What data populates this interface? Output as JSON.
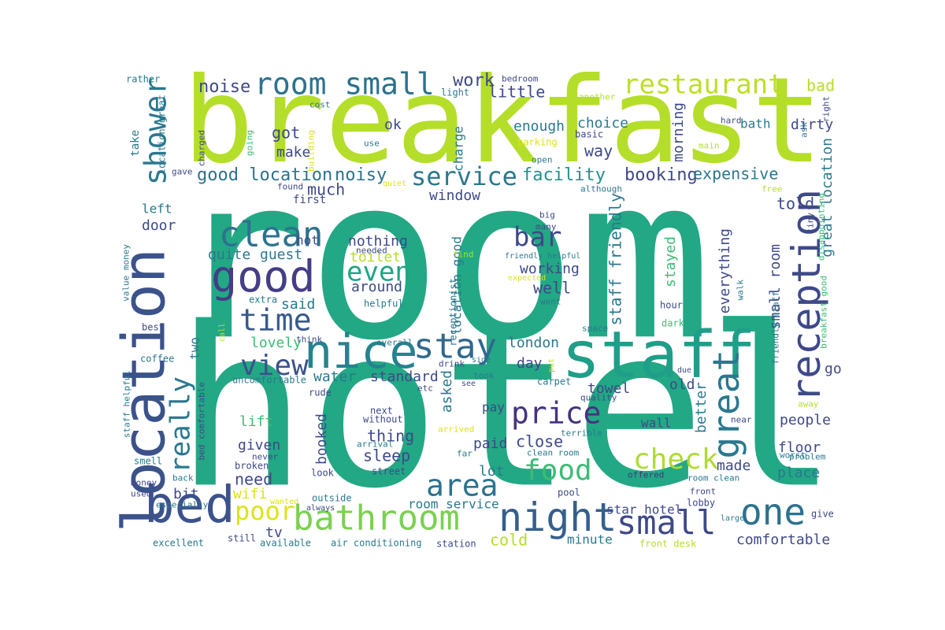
{
  "words": [
    {
      "text": "room",
      "color": "#22a884"
    },
    {
      "text": "hotel",
      "color": "#22a884"
    },
    {
      "text": "breakfast",
      "color": "#b5de2b"
    },
    {
      "text": "location",
      "color": "#3b528b"
    },
    {
      "text": "staff",
      "color": "#1f9e89"
    },
    {
      "text": "nice",
      "color": "#26828e"
    },
    {
      "text": "bed",
      "color": "#3b528b"
    },
    {
      "text": "bathroom",
      "color": "#7ad151"
    },
    {
      "text": "good",
      "color": "#433e85"
    },
    {
      "text": "night",
      "color": "#355f8d"
    },
    {
      "text": "reception",
      "color": "#3e4989"
    },
    {
      "text": "room small",
      "color": "#2c728e"
    },
    {
      "text": "restaurant",
      "color": "#bddf26"
    },
    {
      "text": "clean",
      "color": "#2c728e"
    },
    {
      "text": "stay",
      "color": "#31688e"
    },
    {
      "text": "shower",
      "color": "#2a788e"
    },
    {
      "text": "time",
      "color": "#38598c"
    },
    {
      "text": "one",
      "color": "#2c728e"
    },
    {
      "text": "small",
      "color": "#3e4989"
    },
    {
      "text": "great",
      "color": "#2a788e"
    },
    {
      "text": "check",
      "color": "#addc30"
    },
    {
      "text": "food",
      "color": "#3dbc74"
    },
    {
      "text": "price",
      "color": "#46337e"
    },
    {
      "text": "area",
      "color": "#2c728e"
    },
    {
      "text": "view",
      "color": "#3b528b"
    },
    {
      "text": "bar",
      "color": "#3e4989"
    },
    {
      "text": "really",
      "color": "#2a788e"
    },
    {
      "text": "even",
      "color": "#20a486"
    },
    {
      "text": "service",
      "color": "#2a788e"
    },
    {
      "text": "poor",
      "color": "#dde318"
    },
    {
      "text": "good location",
      "color": "#2c728e"
    },
    {
      "text": "noisy",
      "color": "#2c728e"
    },
    {
      "text": "facility",
      "color": "#21918c"
    },
    {
      "text": "booking",
      "color": "#3e4989"
    },
    {
      "text": "expensive",
      "color": "#2a788e"
    },
    {
      "text": "noise",
      "color": "#3e4989"
    },
    {
      "text": "work",
      "color": "#3e4989"
    },
    {
      "text": "little",
      "color": "#3e4989"
    },
    {
      "text": "got",
      "color": "#3e4989"
    },
    {
      "text": "make",
      "color": "#3e4989"
    },
    {
      "text": "ok",
      "color": "#3e4989"
    },
    {
      "text": "enough",
      "color": "#2a788e"
    },
    {
      "text": "choice",
      "color": "#2a788e"
    },
    {
      "text": "way",
      "color": "#3e4989"
    },
    {
      "text": "morning",
      "color": "#3e4989"
    },
    {
      "text": "dirty",
      "color": "#3e4989"
    },
    {
      "text": "bath",
      "color": "#2a788e"
    },
    {
      "text": "bad",
      "color": "#b5de2b"
    },
    {
      "text": "much",
      "color": "#3e4989"
    },
    {
      "text": "window",
      "color": "#3e4989"
    },
    {
      "text": "told",
      "color": "#3e4989"
    },
    {
      "text": "nothing",
      "color": "#3e4989"
    },
    {
      "text": "toilet",
      "color": "#b5de2b"
    },
    {
      "text": "around",
      "color": "#3e4989"
    },
    {
      "text": "working",
      "color": "#3e4989"
    },
    {
      "text": "well",
      "color": "#3e4989"
    },
    {
      "text": "guest",
      "color": "#2a788e"
    },
    {
      "text": "quite",
      "color": "#2a788e"
    },
    {
      "text": "said",
      "color": "#2a788e"
    },
    {
      "text": "lovely",
      "color": "#3dbc74"
    },
    {
      "text": "door",
      "color": "#3e4989"
    },
    {
      "text": "left",
      "color": "#2a788e"
    },
    {
      "text": "hot",
      "color": "#3e4989"
    },
    {
      "text": "first",
      "color": "#3e4989"
    },
    {
      "text": "london",
      "color": "#2a788e"
    },
    {
      "text": "day",
      "color": "#3e4989"
    },
    {
      "text": "old",
      "color": "#3e4989"
    },
    {
      "text": "water",
      "color": "#2a788e"
    },
    {
      "text": "standard",
      "color": "#3e4989"
    },
    {
      "text": "asked",
      "color": "#2a788e"
    },
    {
      "text": "towel",
      "color": "#3e4989"
    },
    {
      "text": "lift",
      "color": "#3dbc74"
    },
    {
      "text": "given",
      "color": "#3e4989"
    },
    {
      "text": "booked",
      "color": "#3e4989"
    },
    {
      "text": "thing",
      "color": "#3e4989"
    },
    {
      "text": "sleep",
      "color": "#3e4989"
    },
    {
      "text": "close",
      "color": "#3e4989"
    },
    {
      "text": "paid",
      "color": "#3e4989"
    },
    {
      "text": "pay",
      "color": "#3e4989"
    },
    {
      "text": "lot",
      "color": "#2a788e"
    },
    {
      "text": "need",
      "color": "#3e4989"
    },
    {
      "text": "wifi",
      "color": "#dde318"
    },
    {
      "text": "bit",
      "color": "#3e4989"
    },
    {
      "text": "tv",
      "color": "#3e4989"
    },
    {
      "text": "cold",
      "color": "#b5de2b"
    },
    {
      "text": "minute",
      "color": "#2a788e"
    },
    {
      "text": "comfortable",
      "color": "#3e4989"
    },
    {
      "text": "people",
      "color": "#3e4989"
    },
    {
      "text": "floor",
      "color": "#3e4989"
    },
    {
      "text": "place",
      "color": "#2a788e"
    },
    {
      "text": "made",
      "color": "#3e4989"
    },
    {
      "text": "better",
      "color": "#2a788e"
    },
    {
      "text": "wall",
      "color": "#3e4989"
    },
    {
      "text": "stayed",
      "color": "#3dbc74"
    },
    {
      "text": "everything",
      "color": "#3e4989"
    },
    {
      "text": "staff friendly",
      "color": "#2a788e"
    },
    {
      "text": "small room",
      "color": "#3e4989"
    },
    {
      "text": "great location",
      "color": "#2a788e"
    },
    {
      "text": "location good",
      "color": "#2a788e"
    },
    {
      "text": "charge",
      "color": "#2a788e"
    },
    {
      "text": "go",
      "color": "#3e4989"
    },
    {
      "text": "two",
      "color": "#2a788e"
    },
    {
      "text": "room service",
      "color": "#2a788e"
    },
    {
      "text": "star hotel",
      "color": "#3e4989"
    },
    {
      "text": "take",
      "color": "#2a788e"
    },
    {
      "text": "rather",
      "color": "#2a788e"
    },
    {
      "text": "bedroom",
      "color": "#3e4989"
    },
    {
      "text": "light",
      "color": "#2a788e"
    },
    {
      "text": "another",
      "color": "#b5de2b"
    },
    {
      "text": "cost",
      "color": "#2a788e"
    },
    {
      "text": "parking",
      "color": "#dde318"
    },
    {
      "text": "basic",
      "color": "#3e4989"
    },
    {
      "text": "open",
      "color": "#2a788e"
    },
    {
      "text": "use",
      "color": "#2a788e"
    },
    {
      "text": "hard",
      "color": "#3e4989"
    },
    {
      "text": "main",
      "color": "#b5de2b"
    },
    {
      "text": "right",
      "color": "#3e4989"
    },
    {
      "text": "ask",
      "color": "#2a788e"
    },
    {
      "text": "disappointing",
      "color": "#3dbc74"
    },
    {
      "text": "free",
      "color": "#b5de2b"
    },
    {
      "text": "although",
      "color": "#2a788e"
    },
    {
      "text": "location great",
      "color": "#2a788e"
    },
    {
      "text": "charged",
      "color": "#3e4989"
    },
    {
      "text": "going",
      "color": "#3dbc74"
    },
    {
      "text": "building",
      "color": "#dde318"
    },
    {
      "text": "gave",
      "color": "#3e4989"
    },
    {
      "text": "found",
      "color": "#3e4989"
    },
    {
      "text": "quiet",
      "color": "#dde318"
    },
    {
      "text": "big",
      "color": "#3e4989"
    },
    {
      "text": "many",
      "color": "#3e4989"
    },
    {
      "text": "tiny",
      "color": "#3e4989"
    },
    {
      "text": "value money",
      "color": "#2a788e"
    },
    {
      "text": "needed",
      "color": "#3e4989"
    },
    {
      "text": "find",
      "color": "#b5de2b"
    },
    {
      "text": "friendly helpful",
      "color": "#2a788e"
    },
    {
      "text": "expected",
      "color": "#dde318"
    },
    {
      "text": "receptionist",
      "color": "#2a788e"
    },
    {
      "text": "helpful",
      "color": "#2a788e"
    },
    {
      "text": "went",
      "color": "#2a788e"
    },
    {
      "text": "extra",
      "color": "#2a788e"
    },
    {
      "text": "walk",
      "color": "#2a788e"
    },
    {
      "text": "hour",
      "color": "#3e4989"
    },
    {
      "text": "best",
      "color": "#3e4989"
    },
    {
      "text": "space",
      "color": "#2a788e"
    },
    {
      "text": "dark",
      "color": "#3dbc74"
    },
    {
      "text": "friendly staff",
      "color": "#2a788e"
    },
    {
      "text": "breakfast good",
      "color": "#3dbc74"
    },
    {
      "text": "call",
      "color": "#b5de2b"
    },
    {
      "text": "overall",
      "color": "#2a788e"
    },
    {
      "text": "think",
      "color": "#3e4989"
    },
    {
      "text": "coffee",
      "color": "#2a788e"
    },
    {
      "text": "drink",
      "color": "#3e4989"
    },
    {
      "text": "put",
      "color": "#b5de2b"
    },
    {
      "text": "due",
      "color": "#3e4989"
    },
    {
      "text": "uncomfortable",
      "color": "#2a788e"
    },
    {
      "text": "took",
      "color": "#2a788e"
    },
    {
      "text": "carpet",
      "color": "#2a788e"
    },
    {
      "text": "rude",
      "color": "#3e4989"
    },
    {
      "text": "etc",
      "color": "#3e4989"
    },
    {
      "text": "see",
      "color": "#3e4989"
    },
    {
      "text": "quality",
      "color": "#3e4989"
    },
    {
      "text": "staff helpful",
      "color": "#2a788e"
    },
    {
      "text": "bed comfortable",
      "color": "#3e4989"
    },
    {
      "text": "next",
      "color": "#3e4989"
    },
    {
      "text": "without",
      "color": "#3e4989"
    },
    {
      "text": "arrival",
      "color": "#2a788e"
    },
    {
      "text": "arrived",
      "color": "#dde318"
    },
    {
      "text": "terrible",
      "color": "#2a788e"
    },
    {
      "text": "near",
      "color": "#3e4989"
    },
    {
      "text": "away",
      "color": "#b5de2b"
    },
    {
      "text": "worst",
      "color": "#2a788e"
    },
    {
      "text": "problem",
      "color": "#2a788e"
    },
    {
      "text": "smell",
      "color": "#2a788e"
    },
    {
      "text": "never",
      "color": "#3e4989"
    },
    {
      "text": "broken",
      "color": "#3e4989"
    },
    {
      "text": "street",
      "color": "#3e4989"
    },
    {
      "text": "far",
      "color": "#2a788e"
    },
    {
      "text": "clean room",
      "color": "#2a788e"
    },
    {
      "text": "look",
      "color": "#3e4989"
    },
    {
      "text": "offered",
      "color": "#46337e"
    },
    {
      "text": "room clean",
      "color": "#2a788e"
    },
    {
      "text": "money",
      "color": "#3e4989"
    },
    {
      "text": "back",
      "color": "#2a788e"
    },
    {
      "text": "used",
      "color": "#3e4989"
    },
    {
      "text": "especially",
      "color": "#2a788e"
    },
    {
      "text": "wanted",
      "color": "#dde318"
    },
    {
      "text": "outside",
      "color": "#2a788e"
    },
    {
      "text": "always",
      "color": "#3e4989"
    },
    {
      "text": "pool",
      "color": "#3e4989"
    },
    {
      "text": "front",
      "color": "#3e4989"
    },
    {
      "text": "lobby",
      "color": "#3e4989"
    },
    {
      "text": "large",
      "color": "#2a788e"
    },
    {
      "text": "give",
      "color": "#3e4989"
    },
    {
      "text": "still",
      "color": "#3e4989"
    },
    {
      "text": "available",
      "color": "#2a788e"
    },
    {
      "text": "air conditioning",
      "color": "#2a788e"
    },
    {
      "text": "station",
      "color": "#3e4989"
    },
    {
      "text": "excellent",
      "color": "#2a788e"
    },
    {
      "text": "front desk",
      "color": "#b5de2b"
    },
    {
      "text": "side",
      "color": "#2a788e"
    }
  ]
}
